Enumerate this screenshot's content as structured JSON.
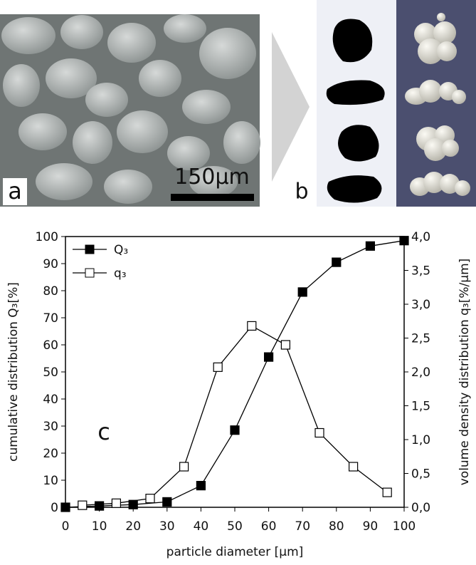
{
  "panels": {
    "a": "a",
    "scale_bar": "150μm",
    "b": "b"
  },
  "chart_data": {
    "type": "line",
    "annotation": "c",
    "x_label": "particle diameter [μm]",
    "y_label": "cumulative distribution Q₃[%]",
    "y2_label": "volume density distribution q₃[%/μm]",
    "xlim": [
      0,
      100
    ],
    "xticks": [
      0,
      10,
      20,
      30,
      40,
      50,
      60,
      70,
      80,
      90,
      100
    ],
    "ylim": [
      0,
      100
    ],
    "yticks": [
      0,
      10,
      20,
      30,
      40,
      50,
      60,
      70,
      80,
      90,
      100
    ],
    "y2lim": [
      0,
      4.0
    ],
    "y2ticks": [
      {
        "value": 0,
        "label": "0,0"
      },
      {
        "value": 0.5,
        "label": "0,5"
      },
      {
        "value": 1.0,
        "label": "1,0"
      },
      {
        "value": 1.5,
        "label": "1,5"
      },
      {
        "value": 2.0,
        "label": "2,0"
      },
      {
        "value": 2.5,
        "label": "2,5"
      },
      {
        "value": 3.0,
        "label": "3,0"
      },
      {
        "value": 3.5,
        "label": "3,5"
      },
      {
        "value": 4.0,
        "label": "4,0"
      }
    ],
    "legend": "top-left",
    "series": [
      {
        "name": "Q₃",
        "color": "#000000",
        "marker": "filled-square",
        "x": [
          0,
          10,
          20,
          30,
          40,
          50,
          60,
          70,
          80,
          90,
          100
        ],
        "values": [
          0,
          0.5,
          1,
          2,
          8,
          28.5,
          55.5,
          79.5,
          90.5,
          96.5,
          98.5
        ]
      },
      {
        "name": "q₃",
        "color": "#000000",
        "marker": "open-square",
        "axis": "y2",
        "x": [
          5,
          15,
          25,
          35,
          45,
          55,
          65,
          75,
          85,
          95
        ],
        "values": [
          0.03,
          0.06,
          0.13,
          0.6,
          2.07,
          2.68,
          2.4,
          1.1,
          0.6,
          0.22
        ]
      }
    ]
  }
}
